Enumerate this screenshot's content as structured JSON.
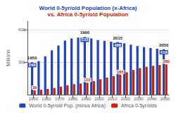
{
  "chart_data": {
    "type": "bar",
    "title": "World 0-5yr/old Population (x-Africa)",
    "subtitle": "vs. Africa 0-5yr/old Population",
    "x": [
      1950,
      1955,
      1960,
      1965,
      1970,
      1975,
      1980,
      1985,
      1990,
      1995,
      2000,
      2005,
      2010,
      2015,
      2020,
      2025,
      2030,
      2035,
      2040,
      2045,
      2050
    ],
    "series": [
      {
        "name": "World 0-5yr/old Pop. (minus Africa)",
        "color": "#2244bb",
        "values": [
          299,
          310,
          355,
          410,
          455,
          500,
          520,
          528,
          533,
          520,
          505,
          498,
          490,
          486,
          475,
          462,
          450,
          440,
          432,
          425,
          419
        ],
        "value_labels": [
          "299",
          null,
          null,
          null,
          null,
          null,
          null,
          null,
          "533",
          null,
          null,
          null,
          null,
          "486",
          null,
          null,
          null,
          null,
          null,
          null,
          "419"
        ]
      },
      {
        "name": "Africa 0-5yr/olds",
        "color": "#cc2200",
        "values": [
          39,
          45,
          52,
          62,
          74,
          87,
          97,
          103,
          110,
          125,
          142,
          158,
          172,
          185,
          207,
          228,
          245,
          258,
          267,
          274,
          280
        ],
        "value_labels": [
          "39",
          null,
          null,
          null,
          null,
          null,
          null,
          null,
          "110",
          null,
          null,
          null,
          null,
          "185",
          null,
          null,
          null,
          null,
          null,
          null,
          "280"
        ]
      }
    ],
    "ylabel": "Millions",
    "xlim": [
      1945.5,
      2053
    ],
    "xticks": [
      1950,
      1960,
      1970,
      1980,
      1990,
      2000,
      2010,
      2020,
      2030,
      2040,
      2050
    ],
    "ylim": [
      0,
      680
    ],
    "yticks": [
      300,
      600
    ],
    "grid": true,
    "legend": "bottom",
    "annotations": [
      {
        "text": "1950",
        "x": 1950,
        "y": 320
      },
      {
        "text": "1990",
        "x": 1990,
        "y": 555
      },
      {
        "text": "2015",
        "x": 2015,
        "y": 505
      },
      {
        "text": "2050",
        "x": 2050,
        "y": 435
      }
    ]
  }
}
